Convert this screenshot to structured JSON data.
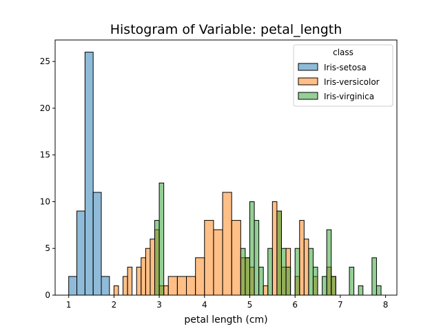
{
  "chart_data": {
    "type": "bar",
    "title": "Histogram of Variable: petal_length",
    "xlabel": "petal length (cm)",
    "ylabel": "",
    "xlim": [
      0.7,
      8.25
    ],
    "ylim": [
      0,
      27.3
    ],
    "xticks": [
      1,
      2,
      3,
      4,
      5,
      6,
      7,
      8
    ],
    "yticks": [
      0,
      5,
      10,
      15,
      20,
      25
    ],
    "grid": false,
    "legend": {
      "title": "class",
      "placement": "top-right"
    },
    "series": [
      {
        "name": "Iris-setosa",
        "color": "#1f77b4",
        "edges": [
          1.0,
          1.18,
          1.36,
          1.54,
          1.72,
          1.9
        ],
        "counts": [
          2,
          9,
          26,
          11,
          2
        ]
      },
      {
        "name": "Iris-versicolor",
        "color": "#ff7f0e",
        "bins": [
          [
            2.0,
            2.1,
            1
          ],
          [
            2.2,
            2.3,
            2
          ],
          [
            2.3,
            2.4,
            3
          ],
          [
            2.5,
            2.6,
            3
          ],
          [
            2.6,
            2.7,
            4
          ],
          [
            2.7,
            2.8,
            5
          ],
          [
            2.8,
            2.9,
            6
          ],
          [
            2.9,
            3.0,
            7
          ],
          [
            3.0,
            3.1,
            1
          ],
          [
            3.1,
            3.2,
            1
          ],
          [
            3.2,
            3.4,
            2
          ],
          [
            3.4,
            3.6,
            2
          ],
          [
            3.6,
            3.8,
            2
          ],
          [
            3.8,
            4.0,
            4
          ],
          [
            4.0,
            4.2,
            8
          ],
          [
            4.2,
            4.4,
            7
          ],
          [
            4.4,
            4.6,
            11
          ],
          [
            4.6,
            4.8,
            8
          ],
          [
            4.8,
            5.0,
            4
          ],
          [
            5.0,
            5.1,
            3
          ],
          [
            5.3,
            5.4,
            1
          ],
          [
            5.5,
            5.6,
            10
          ],
          [
            5.6,
            5.7,
            9
          ],
          [
            5.7,
            5.8,
            3
          ],
          [
            5.8,
            5.9,
            5
          ],
          [
            6.0,
            6.1,
            2
          ],
          [
            6.1,
            6.2,
            8
          ],
          [
            6.2,
            6.3,
            6
          ],
          [
            6.4,
            6.5,
            2
          ],
          [
            6.7,
            6.8,
            3
          ],
          [
            6.8,
            6.9,
            2
          ]
        ]
      },
      {
        "name": "Iris-virginica",
        "color": "#2ca02c",
        "bins": [
          [
            2.9,
            3.0,
            8
          ],
          [
            3.0,
            3.1,
            12
          ],
          [
            4.8,
            4.9,
            5
          ],
          [
            4.9,
            5.0,
            4
          ],
          [
            5.0,
            5.1,
            10
          ],
          [
            5.1,
            5.2,
            8
          ],
          [
            5.2,
            5.3,
            3
          ],
          [
            5.4,
            5.5,
            5
          ],
          [
            5.6,
            5.7,
            9
          ],
          [
            5.7,
            5.8,
            5
          ],
          [
            5.8,
            5.9,
            3
          ],
          [
            6.0,
            6.1,
            5
          ],
          [
            6.3,
            6.4,
            5
          ],
          [
            6.4,
            6.5,
            3
          ],
          [
            6.6,
            6.7,
            2
          ],
          [
            6.7,
            6.8,
            7
          ],
          [
            6.8,
            6.9,
            2
          ],
          [
            7.2,
            7.3,
            3
          ],
          [
            7.4,
            7.5,
            1
          ],
          [
            7.7,
            7.8,
            4
          ],
          [
            7.8,
            7.9,
            1
          ]
        ]
      }
    ]
  }
}
